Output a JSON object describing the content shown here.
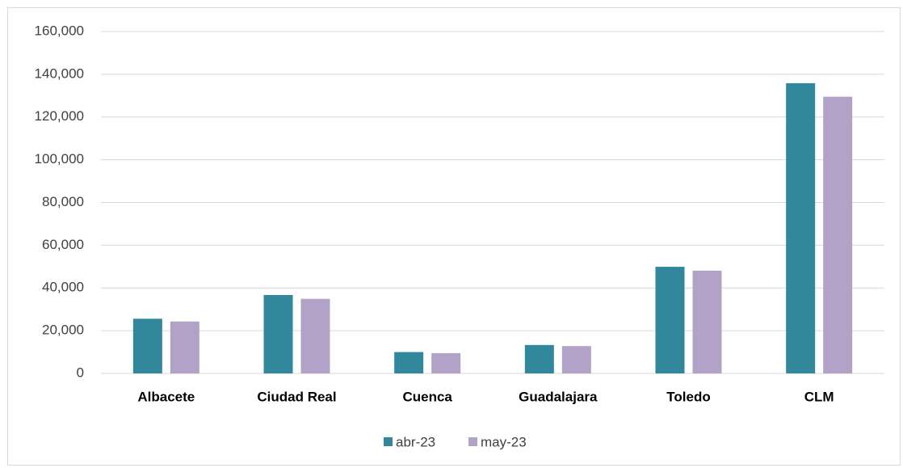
{
  "chart_data": {
    "type": "bar",
    "categories": [
      "Albacete",
      "Ciudad Real",
      "Cuenca",
      "Guadalajara",
      "Toledo",
      "CLM"
    ],
    "series": [
      {
        "name": "abr-23",
        "color": "#31879c",
        "values": [
          25600,
          36700,
          10000,
          13300,
          49900,
          135800
        ]
      },
      {
        "name": "may-23",
        "color": "#b3a2c7",
        "values": [
          24300,
          34900,
          9500,
          12800,
          48100,
          129500
        ]
      }
    ],
    "ylim": [
      0,
      160000
    ],
    "yticks": [
      0,
      {
        "value": 20000,
        "label": "20,000"
      },
      {
        "value": 40000,
        "label": "40,000"
      },
      {
        "value": 60000,
        "label": "60,000"
      },
      {
        "value": 80000,
        "label": "80,000"
      },
      {
        "value": 100000,
        "label": "100,000"
      },
      {
        "value": 120000,
        "label": "120,000"
      },
      {
        "value": 140000,
        "label": "140,000"
      },
      {
        "value": 160000,
        "label": "160,000"
      }
    ],
    "grid": true,
    "legend": "bottom"
  }
}
